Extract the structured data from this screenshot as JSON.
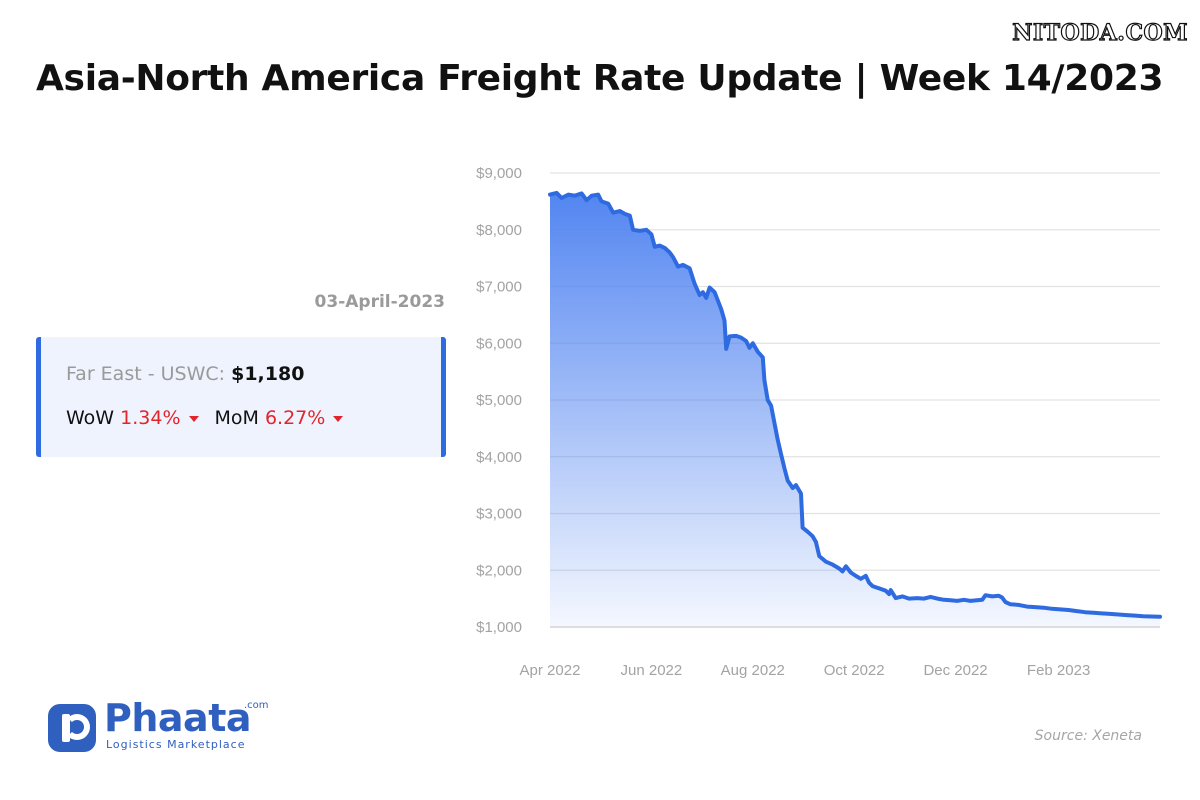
{
  "watermark": "NITODA.COM",
  "title": "Asia-North America Freight Rate Update | Week 14/2023",
  "summary": {
    "date": "03-April-2023",
    "route_label": "Far East - USWC:",
    "rate": "$1,180",
    "wow_label": "WoW",
    "wow_value": "1.34%",
    "mom_label": "MoM",
    "mom_value": "6.27%"
  },
  "logo": {
    "name": "Phaata",
    "domain": ".com",
    "tagline": "Logistics Marketplace"
  },
  "source": "Source: Xeneta",
  "colors": {
    "line": "#2f6be0",
    "area_top": "#4a7ff0",
    "card_border": "#2f6be0",
    "down": "#e3242b"
  },
  "chart_data": {
    "type": "area",
    "title": "",
    "xlabel": "",
    "ylabel": "",
    "ylim": [
      1000,
      9000
    ],
    "x_ticks": [
      "Apr 2022",
      "Jun 2022",
      "Aug 2022",
      "Oct 2022",
      "Dec 2022",
      "Feb 2023"
    ],
    "y_ticks": [
      "$1,000",
      "$2,000",
      "$3,000",
      "$4,000",
      "$5,000",
      "$6,000",
      "$7,000",
      "$8,000",
      "$9,000"
    ],
    "y_tick_values": [
      1000,
      2000,
      3000,
      4000,
      5000,
      6000,
      7000,
      8000,
      9000
    ],
    "x_range": [
      "2022-04-01",
      "2023-04-03"
    ],
    "grid": true,
    "legend": "none",
    "series": [
      {
        "name": "Far East - USWC",
        "points": [
          [
            "2022-04-01",
            8620
          ],
          [
            "2022-04-05",
            8650
          ],
          [
            "2022-04-08",
            8560
          ],
          [
            "2022-04-12",
            8620
          ],
          [
            "2022-04-16",
            8600
          ],
          [
            "2022-04-20",
            8640
          ],
          [
            "2022-04-23",
            8520
          ],
          [
            "2022-04-26",
            8600
          ],
          [
            "2022-04-30",
            8620
          ],
          [
            "2022-05-02",
            8500
          ],
          [
            "2022-05-06",
            8460
          ],
          [
            "2022-05-09",
            8300
          ],
          [
            "2022-05-13",
            8330
          ],
          [
            "2022-05-16",
            8280
          ],
          [
            "2022-05-19",
            8250
          ],
          [
            "2022-05-21",
            8000
          ],
          [
            "2022-05-25",
            7980
          ],
          [
            "2022-05-29",
            8000
          ],
          [
            "2022-06-01",
            7920
          ],
          [
            "2022-06-03",
            7700
          ],
          [
            "2022-06-06",
            7720
          ],
          [
            "2022-06-09",
            7680
          ],
          [
            "2022-06-12",
            7600
          ],
          [
            "2022-06-14",
            7520
          ],
          [
            "2022-06-17",
            7350
          ],
          [
            "2022-06-20",
            7380
          ],
          [
            "2022-06-24",
            7320
          ],
          [
            "2022-06-27",
            7050
          ],
          [
            "2022-06-30",
            6850
          ],
          [
            "2022-07-02",
            6900
          ],
          [
            "2022-07-04",
            6800
          ],
          [
            "2022-07-06",
            6980
          ],
          [
            "2022-07-09",
            6900
          ],
          [
            "2022-07-13",
            6600
          ],
          [
            "2022-07-15",
            6400
          ],
          [
            "2022-07-16",
            5900
          ],
          [
            "2022-07-18",
            6120
          ],
          [
            "2022-07-22",
            6130
          ],
          [
            "2022-07-25",
            6100
          ],
          [
            "2022-07-28",
            6040
          ],
          [
            "2022-07-30",
            5920
          ],
          [
            "2022-08-01",
            6000
          ],
          [
            "2022-08-04",
            5850
          ],
          [
            "2022-08-07",
            5750
          ],
          [
            "2022-08-08",
            5350
          ],
          [
            "2022-08-10",
            5000
          ],
          [
            "2022-08-12",
            4900
          ],
          [
            "2022-08-14",
            4600
          ],
          [
            "2022-08-16",
            4300
          ],
          [
            "2022-08-18",
            4050
          ],
          [
            "2022-08-20",
            3800
          ],
          [
            "2022-08-22",
            3580
          ],
          [
            "2022-08-25",
            3450
          ],
          [
            "2022-08-27",
            3500
          ],
          [
            "2022-08-30",
            3350
          ],
          [
            "2022-08-31",
            2750
          ],
          [
            "2022-09-03",
            2680
          ],
          [
            "2022-09-06",
            2600
          ],
          [
            "2022-09-08",
            2500
          ],
          [
            "2022-09-10",
            2250
          ],
          [
            "2022-09-14",
            2150
          ],
          [
            "2022-09-18",
            2100
          ],
          [
            "2022-09-22",
            2030
          ],
          [
            "2022-09-24",
            1980
          ],
          [
            "2022-09-26",
            2070
          ],
          [
            "2022-09-29",
            1960
          ],
          [
            "2022-10-02",
            1900
          ],
          [
            "2022-10-05",
            1850
          ],
          [
            "2022-10-08",
            1900
          ],
          [
            "2022-10-10",
            1780
          ],
          [
            "2022-10-12",
            1720
          ],
          [
            "2022-10-16",
            1680
          ],
          [
            "2022-10-20",
            1640
          ],
          [
            "2022-10-22",
            1580
          ],
          [
            "2022-10-23",
            1650
          ],
          [
            "2022-10-26",
            1510
          ],
          [
            "2022-10-30",
            1540
          ],
          [
            "2022-11-03",
            1500
          ],
          [
            "2022-11-08",
            1510
          ],
          [
            "2022-11-12",
            1500
          ],
          [
            "2022-11-16",
            1530
          ],
          [
            "2022-11-20",
            1500
          ],
          [
            "2022-11-24",
            1480
          ],
          [
            "2022-11-28",
            1470
          ],
          [
            "2022-12-02",
            1460
          ],
          [
            "2022-12-06",
            1480
          ],
          [
            "2022-12-10",
            1460
          ],
          [
            "2022-12-14",
            1470
          ],
          [
            "2022-12-17",
            1480
          ],
          [
            "2022-12-19",
            1560
          ],
          [
            "2022-12-23",
            1540
          ],
          [
            "2022-12-27",
            1550
          ],
          [
            "2022-12-29",
            1520
          ],
          [
            "2022-12-31",
            1440
          ],
          [
            "2023-01-03",
            1400
          ],
          [
            "2023-01-08",
            1390
          ],
          [
            "2023-01-13",
            1360
          ],
          [
            "2023-01-18",
            1350
          ],
          [
            "2023-01-23",
            1340
          ],
          [
            "2023-01-28",
            1320
          ],
          [
            "2023-02-02",
            1310
          ],
          [
            "2023-02-07",
            1300
          ],
          [
            "2023-02-12",
            1280
          ],
          [
            "2023-02-17",
            1260
          ],
          [
            "2023-02-22",
            1250
          ],
          [
            "2023-02-27",
            1240
          ],
          [
            "2023-03-04",
            1230
          ],
          [
            "2023-03-09",
            1220
          ],
          [
            "2023-03-14",
            1210
          ],
          [
            "2023-03-19",
            1200
          ],
          [
            "2023-03-24",
            1190
          ],
          [
            "2023-03-29",
            1185
          ],
          [
            "2023-04-03",
            1180
          ]
        ]
      }
    ]
  }
}
